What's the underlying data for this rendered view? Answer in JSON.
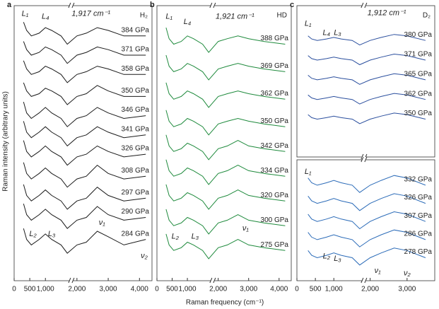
{
  "figure": {
    "xlabel": "Raman frequency (cm⁻¹)",
    "ylabel": "Raman intensity (arbitrary units)"
  },
  "chart_data": [
    {
      "type": "line",
      "label": "a",
      "title": "H₂",
      "color": "#1a1a1a",
      "xlim": [
        0,
        4400
      ],
      "x_break": [
        1750,
        1900
      ],
      "ylim": [
        0,
        100
      ],
      "xticks": [
        0,
        500,
        {
          "value": 1000,
          "label": "1,000"
        },
        {
          "value": 2000,
          "label": "2,000"
        },
        {
          "value": 3000,
          "label": "3,000"
        },
        {
          "value": 4000,
          "label": "4,000"
        }
      ],
      "annotations": [
        "L₁",
        "L₄",
        "1,917 cm⁻¹",
        "L₂",
        "L₃",
        "ν₁",
        "ν₂"
      ],
      "x": [
        300,
        400,
        550,
        800,
        1000,
        1200,
        1500,
        1700,
        2000,
        2300,
        2650,
        3000,
        3500,
        4200
      ],
      "series": [
        {
          "name": "384 GPa",
          "values": [
            94,
            91,
            89,
            90,
            92,
            91,
            89,
            86,
            89,
            90,
            92,
            91,
            89,
            89
          ]
        },
        {
          "name": "371 GPa",
          "values": [
            87,
            84,
            82,
            83,
            85,
            84,
            82,
            79,
            82,
            83,
            85,
            84,
            82,
            82
          ]
        },
        {
          "name": "358 GPa",
          "values": [
            80,
            77,
            75,
            76,
            78,
            77,
            75,
            72,
            75,
            76,
            78,
            77,
            75,
            75
          ]
        },
        {
          "name": "350 GPa",
          "values": [
            72,
            69,
            67,
            68,
            70,
            69,
            67,
            64,
            67,
            68,
            71,
            69,
            67,
            67
          ]
        },
        {
          "name": "346 GPa",
          "values": [
            65,
            61,
            59,
            61,
            63,
            61,
            59,
            56,
            59,
            60,
            63,
            61,
            59,
            60
          ]
        },
        {
          "name": "341 GPa",
          "values": [
            58,
            54,
            52,
            54,
            56,
            54,
            52,
            49,
            52,
            53,
            56,
            54,
            52,
            53
          ]
        },
        {
          "name": "326 GPa",
          "values": [
            51,
            47,
            45,
            47,
            49,
            47,
            45,
            42,
            45,
            46,
            49,
            47,
            45,
            46
          ]
        },
        {
          "name": "308 GPa",
          "values": [
            43,
            39,
            37,
            39,
            41,
            39,
            37,
            34,
            37,
            38,
            42,
            39,
            37,
            38
          ]
        },
        {
          "name": "297 GPa",
          "values": [
            35,
            31,
            29,
            31,
            33,
            31,
            29,
            26,
            29,
            30,
            34,
            31,
            29,
            30
          ]
        },
        {
          "name": "290 GPa",
          "values": [
            28,
            24,
            22,
            24,
            26,
            24,
            22,
            19,
            22,
            23,
            27,
            24,
            22,
            23
          ]
        },
        {
          "name": "284 GPa",
          "values": [
            19,
            15,
            13,
            15,
            17,
            15,
            13,
            10,
            13,
            14,
            18,
            16,
            13,
            15
          ]
        }
      ]
    },
    {
      "type": "line",
      "label": "b",
      "title": "HD",
      "color": "#1e8a3c",
      "xlim": [
        0,
        4400
      ],
      "x_break": [
        1750,
        1900
      ],
      "ylim": [
        0,
        100
      ],
      "xticks": [
        0,
        500,
        {
          "value": 1000,
          "label": "1,000"
        },
        {
          "value": 2000,
          "label": "2,000"
        },
        {
          "value": 3000,
          "label": "3,000"
        },
        {
          "value": 4000,
          "label": "4,000"
        }
      ],
      "annotations": [
        "L₁",
        "L₄",
        "1,921 cm⁻¹",
        "L₂",
        "L₃",
        "ν₁"
      ],
      "x": [
        300,
        400,
        550,
        800,
        1000,
        1200,
        1500,
        1700,
        2000,
        2300,
        2650,
        3000,
        3500,
        4200
      ],
      "series": [
        {
          "name": "388 GPa",
          "values": [
            92,
            88,
            86,
            87,
            89,
            88,
            86,
            83,
            87,
            88,
            89,
            88,
            87,
            86
          ]
        },
        {
          "name": "369 GPa",
          "values": [
            82,
            78,
            76,
            77,
            79,
            78,
            76,
            73,
            77,
            78,
            79,
            78,
            77,
            76
          ]
        },
        {
          "name": "362 GPa",
          "values": [
            72,
            68,
            66,
            67,
            69,
            68,
            66,
            63,
            67,
            68,
            69,
            68,
            67,
            66
          ]
        },
        {
          "name": "350 GPa",
          "values": [
            62,
            58,
            56,
            57,
            59,
            58,
            56,
            53,
            57,
            58,
            59,
            58,
            57,
            56
          ]
        },
        {
          "name": "342 GPa",
          "values": [
            53,
            49,
            47,
            48,
            50,
            49,
            47,
            44,
            48,
            49,
            51,
            49,
            48,
            47
          ]
        },
        {
          "name": "334 GPa",
          "values": [
            44,
            40,
            38,
            39,
            41,
            40,
            38,
            35,
            39,
            40,
            42,
            40,
            39,
            38
          ]
        },
        {
          "name": "320 GPa",
          "values": [
            35,
            31,
            29,
            30,
            32,
            31,
            29,
            26,
            30,
            31,
            33,
            31,
            30,
            29
          ]
        },
        {
          "name": "300 GPa",
          "values": [
            26,
            22,
            20,
            21,
            23,
            22,
            20,
            17,
            21,
            22,
            24,
            22,
            21,
            20
          ]
        },
        {
          "name": "275 GPa",
          "values": [
            17,
            13,
            11,
            12,
            14,
            13,
            11,
            8,
            12,
            13,
            15,
            13,
            12,
            11
          ]
        }
      ]
    },
    {
      "type": "line",
      "label": "c",
      "title": "D₂",
      "color": "#2b4f9e",
      "xlim": [
        0,
        3750
      ],
      "x_break": [
        1750,
        1900
      ],
      "ylim": [
        0,
        100
      ],
      "annotations": [
        "L₁",
        "L₄",
        "L₃",
        "1,912 cm⁻¹"
      ],
      "x": [
        300,
        400,
        550,
        800,
        1000,
        1200,
        1500,
        1700,
        2000,
        2300,
        2650,
        3000,
        3500
      ],
      "series": [
        {
          "name": "380 GPa",
          "values": [
            80,
            78,
            77,
            78,
            79,
            78,
            77,
            74,
            77,
            79,
            81,
            80,
            77
          ]
        },
        {
          "name": "371 GPa",
          "values": [
            67,
            65,
            64,
            65,
            66,
            65,
            64,
            61,
            64,
            66,
            68,
            67,
            64
          ]
        },
        {
          "name": "365 GPa",
          "values": [
            54,
            52,
            51,
            52,
            53,
            52,
            51,
            48,
            51,
            53,
            55,
            54,
            51
          ]
        },
        {
          "name": "362 GPa",
          "values": [
            41,
            39,
            38,
            39,
            40,
            39,
            38,
            35,
            38,
            40,
            42,
            41,
            38
          ]
        },
        {
          "name": "350 GPa",
          "values": [
            28,
            26,
            25,
            26,
            27,
            26,
            25,
            22,
            25,
            27,
            29,
            28,
            25
          ]
        }
      ]
    },
    {
      "type": "line",
      "color": "#2b6bb8",
      "xlim": [
        0,
        3750
      ],
      "x_break": [
        1750,
        1900
      ],
      "ylim": [
        0,
        100
      ],
      "xticks": [
        0,
        500,
        {
          "value": 1000,
          "label": "1,000"
        },
        {
          "value": 2000,
          "label": "2,000"
        },
        {
          "value": 3000,
          "label": "3,000"
        }
      ],
      "annotations": [
        "L₁",
        "L₂",
        "L₃",
        "ν₁",
        "ν₂"
      ],
      "x": [
        300,
        400,
        550,
        800,
        1000,
        1200,
        1500,
        1700,
        2000,
        2300,
        2650,
        3000,
        3500
      ],
      "series": [
        {
          "name": "332 GPa",
          "values": [
            85,
            81,
            79,
            81,
            83,
            81,
            79,
            73,
            79,
            83,
            87,
            85,
            79
          ]
        },
        {
          "name": "326 GPa",
          "values": [
            70,
            66,
            64,
            66,
            68,
            66,
            64,
            58,
            64,
            68,
            72,
            70,
            64
          ]
        },
        {
          "name": "307 GPa",
          "values": [
            55,
            51,
            49,
            51,
            53,
            51,
            49,
            43,
            49,
            53,
            57,
            55,
            49
          ]
        },
        {
          "name": "286 GPa",
          "values": [
            40,
            36,
            34,
            36,
            38,
            36,
            34,
            28,
            34,
            38,
            42,
            40,
            34
          ]
        },
        {
          "name": "278 GPa",
          "values": [
            25,
            21,
            19,
            21,
            23,
            21,
            19,
            13,
            19,
            23,
            27,
            25,
            19
          ]
        }
      ]
    }
  ]
}
